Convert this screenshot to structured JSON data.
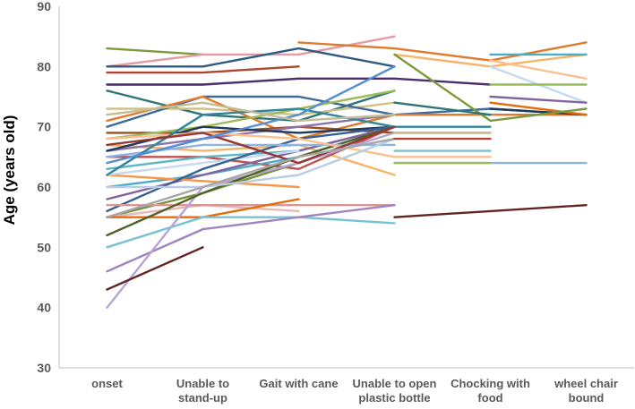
{
  "chart_data": {
    "type": "line",
    "title": "",
    "xlabel": "",
    "ylabel": "Age (years old)",
    "ylim": [
      30,
      90
    ],
    "yticks": [
      30,
      40,
      50,
      60,
      70,
      80,
      90
    ],
    "grid": false,
    "legend": "none",
    "categories": [
      [
        "onset"
      ],
      [
        "Unable to",
        "stand-up"
      ],
      [
        "Gait with cane"
      ],
      [
        "Unable to open",
        "plastic bottle"
      ],
      [
        "Chocking with",
        "food"
      ],
      [
        "wheel chair",
        "bound"
      ]
    ],
    "series": [
      {
        "color": "#7b9a3c",
        "values": [
          83,
          82,
          null,
          null,
          null,
          null
        ]
      },
      {
        "color": "#e59aa6",
        "values": [
          80,
          82,
          82,
          85,
          null,
          null
        ]
      },
      {
        "color": "#2e5b84",
        "values": [
          80,
          80,
          83,
          80,
          null,
          null
        ]
      },
      {
        "color": "#b04632",
        "values": [
          79,
          79,
          80,
          null,
          null,
          null
        ]
      },
      {
        "color": "#a9c2d9",
        "values": [
          77,
          77,
          78,
          null,
          null,
          null
        ]
      },
      {
        "color": "#4b2e6b",
        "values": [
          77,
          77,
          78,
          78,
          77,
          null
        ]
      },
      {
        "color": "#2e7575",
        "values": [
          76,
          72,
          71,
          76,
          null,
          null
        ]
      },
      {
        "color": "#d0c08a",
        "values": [
          73,
          73,
          72,
          74,
          null,
          null
        ]
      },
      {
        "color": "#3f6a99",
        "values": [
          70,
          75,
          75,
          72,
          73,
          72
        ]
      },
      {
        "color": "#e07b2e",
        "values": [
          71,
          75,
          68,
          72,
          72,
          72
        ]
      },
      {
        "color": "#9c4d22",
        "values": [
          69,
          69,
          70,
          69,
          69,
          null
        ]
      },
      {
        "color": "#f5b46a",
        "values": [
          67,
          66,
          67,
          62,
          null,
          null
        ]
      },
      {
        "color": "#8e73a8",
        "values": [
          66,
          68,
          70,
          72,
          null,
          null
        ]
      },
      {
        "color": "#c0504d",
        "values": [
          65,
          65,
          63,
          70,
          null,
          null
        ]
      },
      {
        "color": "#5db7c7",
        "values": [
          63,
          65,
          66,
          70,
          null,
          null
        ]
      },
      {
        "color": "#9bbb59",
        "values": [
          68,
          70,
          73,
          76,
          null,
          null
        ]
      },
      {
        "color": "#1f3a5f",
        "values": [
          66,
          70,
          69,
          70,
          null,
          null
        ]
      },
      {
        "color": "#4bacc6",
        "values": [
          60,
          62,
          65,
          70,
          null,
          null
        ]
      },
      {
        "color": "#8064a2",
        "values": [
          58,
          62,
          66,
          70,
          null,
          null
        ]
      },
      {
        "color": "#f79646",
        "values": [
          62,
          61,
          60,
          null,
          null,
          null
        ]
      },
      {
        "color": "#c6d9f0",
        "values": [
          62,
          64,
          66,
          null,
          null,
          null
        ]
      },
      {
        "color": "#76923c",
        "values": [
          55,
          59,
          64,
          70,
          null,
          null
        ]
      },
      {
        "color": "#366092",
        "values": [
          56,
          63,
          68,
          70,
          null,
          null
        ]
      },
      {
        "color": "#e6b9b8",
        "values": [
          55,
          57,
          56,
          null,
          null,
          null
        ]
      },
      {
        "color": "#d99694",
        "values": [
          57,
          57,
          57,
          57,
          null,
          null
        ]
      },
      {
        "color": "#e46c0a",
        "values": [
          55,
          55,
          58,
          null,
          null,
          null
        ]
      },
      {
        "color": "#77c3d4",
        "values": [
          50,
          55,
          55,
          54,
          null,
          null
        ]
      },
      {
        "color": "#9c85c0",
        "values": [
          46,
          53,
          55,
          57,
          null,
          null
        ]
      },
      {
        "color": "#b7a4d6",
        "values": [
          40,
          60,
          64,
          69,
          null,
          null
        ]
      },
      {
        "color": "#632523",
        "values": [
          43,
          50,
          null,
          null,
          null,
          null
        ]
      },
      {
        "color": "#4f6228",
        "values": [
          52,
          59,
          65,
          70,
          null,
          null
        ]
      },
      {
        "color": "#8db3e2",
        "values": [
          65,
          67,
          67,
          67,
          null,
          null
        ]
      },
      {
        "color": "#fac090",
        "values": [
          68,
          69,
          68,
          65,
          65,
          null
        ]
      },
      {
        "color": "#b9cde5",
        "values": [
          60,
          60,
          62,
          68,
          null,
          null
        ]
      },
      {
        "color": "#31859c",
        "values": [
          62,
          72,
          73,
          70,
          70,
          null
        ]
      },
      {
        "color": "#953735",
        "values": [
          67,
          69,
          64,
          70,
          null,
          null
        ]
      },
      {
        "color": "#558ed5",
        "values": [
          64,
          68,
          72,
          80,
          null,
          null
        ]
      },
      {
        "color": "#a6a6a6",
        "values": [
          55,
          60,
          65,
          68,
          null,
          null
        ]
      },
      {
        "color": "#c4bd97",
        "values": [
          72,
          74,
          71,
          72,
          null,
          null
        ]
      },
      {
        "color": "#e07b2e",
        "values": [
          null,
          null,
          84,
          83,
          81,
          84
        ]
      },
      {
        "color": "#f5b46a",
        "values": [
          null,
          null,
          null,
          82,
          80,
          82
        ]
      },
      {
        "color": "#4bacc6",
        "values": [
          null,
          null,
          null,
          null,
          82,
          82
        ]
      },
      {
        "color": "#fac090",
        "values": [
          null,
          null,
          null,
          null,
          81,
          78
        ]
      },
      {
        "color": "#c6d9f0",
        "values": [
          null,
          null,
          null,
          null,
          80,
          74
        ]
      },
      {
        "color": "#9bbb59",
        "values": [
          null,
          null,
          null,
          null,
          77,
          77
        ]
      },
      {
        "color": "#8064a2",
        "values": [
          null,
          null,
          null,
          null,
          75,
          74
        ]
      },
      {
        "color": "#1f3a5f",
        "values": [
          null,
          null,
          null,
          null,
          73,
          72
        ]
      },
      {
        "color": "#e46c0a",
        "values": [
          null,
          null,
          null,
          null,
          74,
          72
        ]
      },
      {
        "color": "#7b9a3c",
        "values": [
          null,
          null,
          null,
          82,
          71,
          73
        ]
      },
      {
        "color": "#2e7575",
        "values": [
          null,
          null,
          null,
          74,
          72,
          null
        ]
      },
      {
        "color": "#d0c08a",
        "values": [
          null,
          null,
          null,
          69,
          69,
          null
        ]
      },
      {
        "color": "#8db3e2",
        "values": [
          null,
          null,
          null,
          64,
          64,
          64
        ]
      },
      {
        "color": "#b04632",
        "values": [
          null,
          null,
          null,
          68,
          68,
          null
        ]
      },
      {
        "color": "#9bbb59",
        "values": [
          null,
          null,
          null,
          64,
          64,
          null
        ]
      },
      {
        "color": "#77c3d4",
        "values": [
          null,
          null,
          null,
          66,
          66,
          null
        ]
      },
      {
        "color": "#632523",
        "values": [
          null,
          null,
          null,
          55,
          56,
          57
        ]
      }
    ]
  }
}
